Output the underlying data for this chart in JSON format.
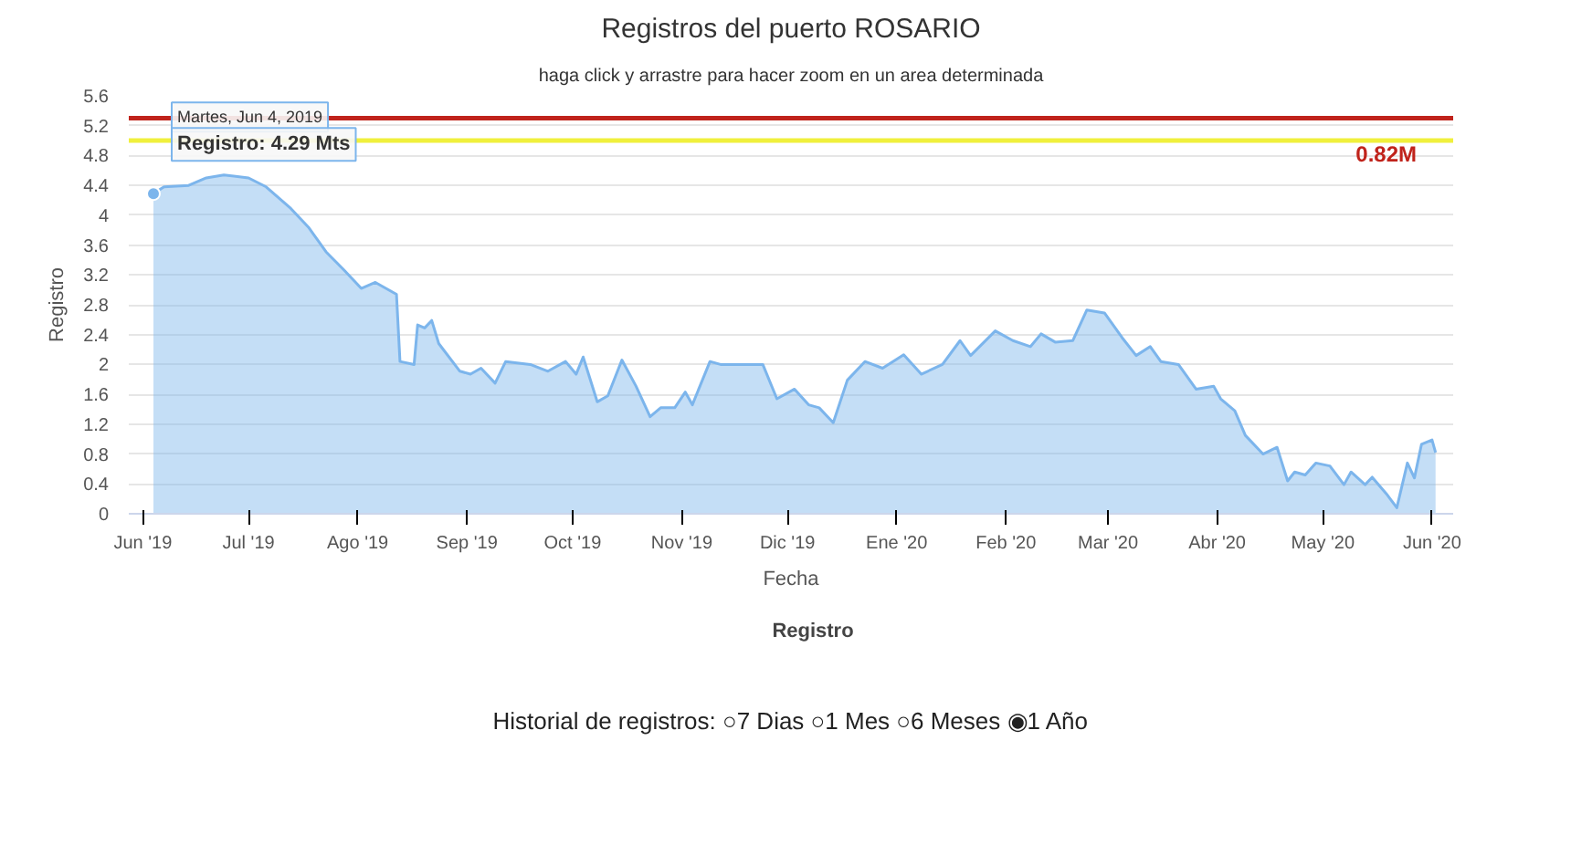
{
  "chart_data": {
    "type": "area",
    "title": "Registros del puerto ROSARIO",
    "subtitle": "haga click y arrastre para hacer zoom en un area determinada",
    "xlabel": "Fecha",
    "ylabel": "Registro",
    "x": [
      "2019-06-04",
      "2019-06-07",
      "2019-06-14",
      "2019-06-19",
      "2019-06-24",
      "2019-07-01",
      "2019-07-06",
      "2019-07-13",
      "2019-07-18",
      "2019-07-23",
      "2019-07-28",
      "2019-08-02",
      "2019-08-06",
      "2019-08-12",
      "2019-08-13",
      "2019-08-17",
      "2019-08-18",
      "2019-08-20",
      "2019-08-22",
      "2019-08-24",
      "2019-08-30",
      "2019-09-02",
      "2019-09-05",
      "2019-09-09",
      "2019-09-12",
      "2019-09-19",
      "2019-09-24",
      "2019-09-29",
      "2019-10-02",
      "2019-10-04",
      "2019-10-08",
      "2019-10-11",
      "2019-10-15",
      "2019-10-19",
      "2019-10-23",
      "2019-10-26",
      "2019-10-30",
      "2019-11-02",
      "2019-11-04",
      "2019-11-09",
      "2019-11-12",
      "2019-11-18",
      "2019-11-24",
      "2019-11-28",
      "2019-12-03",
      "2019-12-07",
      "2019-12-10",
      "2019-12-14",
      "2019-12-18",
      "2019-12-23",
      "2019-12-28",
      "2020-01-03",
      "2020-01-08",
      "2020-01-14",
      "2020-01-19",
      "2020-01-22",
      "2020-01-29",
      "2020-02-03",
      "2020-02-08",
      "2020-02-11",
      "2020-02-15",
      "2020-02-20",
      "2020-02-24",
      "2020-02-29",
      "2020-03-05",
      "2020-03-09",
      "2020-03-13",
      "2020-03-16",
      "2020-03-21",
      "2020-03-26",
      "2020-03-31",
      "2020-04-02",
      "2020-04-06",
      "2020-04-09",
      "2020-04-14",
      "2020-04-18",
      "2020-04-21",
      "2020-04-23",
      "2020-04-26",
      "2020-04-29",
      "2020-05-03",
      "2020-05-07",
      "2020-05-09",
      "2020-05-13",
      "2020-05-15",
      "2020-05-19",
      "2020-05-22",
      "2020-05-25",
      "2020-05-27",
      "2020-05-29",
      "2020-06-01",
      "2020-06-02"
    ],
    "series": [
      {
        "name": "Registro",
        "color": "#7cb5ec",
        "values": [
          4.29,
          4.38,
          4.4,
          4.5,
          4.54,
          4.5,
          4.38,
          4.09,
          3.84,
          3.51,
          3.27,
          3.02,
          3.1,
          2.94,
          2.04,
          2.0,
          2.53,
          2.49,
          2.59,
          2.28,
          1.91,
          1.87,
          1.95,
          1.75,
          2.04,
          2.0,
          1.91,
          2.04,
          1.87,
          2.1,
          1.5,
          1.58,
          2.06,
          1.71,
          1.3,
          1.42,
          1.42,
          1.63,
          1.46,
          2.04,
          2.0,
          2.0,
          2.0,
          1.54,
          1.67,
          1.46,
          1.42,
          1.22,
          1.79,
          2.04,
          1.95,
          2.13,
          1.87,
          2.0,
          2.32,
          2.12,
          2.45,
          2.32,
          2.24,
          2.41,
          2.3,
          2.32,
          2.73,
          2.69,
          2.36,
          2.12,
          2.24,
          2.04,
          2.0,
          1.67,
          1.71,
          1.54,
          1.38,
          1.05,
          0.8,
          0.89,
          0.44,
          0.56,
          0.52,
          0.68,
          0.64,
          0.39,
          0.56,
          0.39,
          0.49,
          0.27,
          0.08,
          0.68,
          0.48,
          0.93,
          0.99,
          0.82
        ]
      }
    ],
    "xlim": [
      "2019-05-28",
      "2020-06-07"
    ],
    "xticks": [
      {
        "value": "2019-06-01",
        "label": "Jun '19"
      },
      {
        "value": "2019-07-01",
        "label": "Jul '19"
      },
      {
        "value": "2019-08-01",
        "label": "Ago '19"
      },
      {
        "value": "2019-09-01",
        "label": "Sep '19"
      },
      {
        "value": "2019-10-01",
        "label": "Oct '19"
      },
      {
        "value": "2019-11-01",
        "label": "Nov '19"
      },
      {
        "value": "2019-12-01",
        "label": "Dic '19"
      },
      {
        "value": "2020-01-01",
        "label": "Ene '20"
      },
      {
        "value": "2020-02-01",
        "label": "Feb '20"
      },
      {
        "value": "2020-03-01",
        "label": "Mar '20"
      },
      {
        "value": "2020-04-01",
        "label": "Abr '20"
      },
      {
        "value": "2020-05-01",
        "label": "May '20"
      },
      {
        "value": "2020-06-01",
        "label": "Jun '20"
      }
    ],
    "ylim": [
      0,
      5.6
    ],
    "yticks": [
      0,
      0.4,
      0.8,
      1.2,
      1.6,
      2,
      2.4,
      2.8,
      3.2,
      3.6,
      4,
      4.4,
      4.8,
      5.2,
      5.6
    ],
    "ref_lines": [
      {
        "axis": "y",
        "value": 5.3,
        "color": "#c0231b"
      },
      {
        "axis": "y",
        "value": 5.0,
        "color": "#f0f03c"
      }
    ],
    "annotations": [
      {
        "text": "Martes, Jun 4, 2019\nRegistro: 4.29 Mts",
        "x": "2019-06-04",
        "y": 4.29
      },
      "0.82M",
      "Historial de registros: ○7 Dias ○1 Mes ○6 Meses ◉1 Año"
    ],
    "grid": "y",
    "legend": "bottom"
  }
}
